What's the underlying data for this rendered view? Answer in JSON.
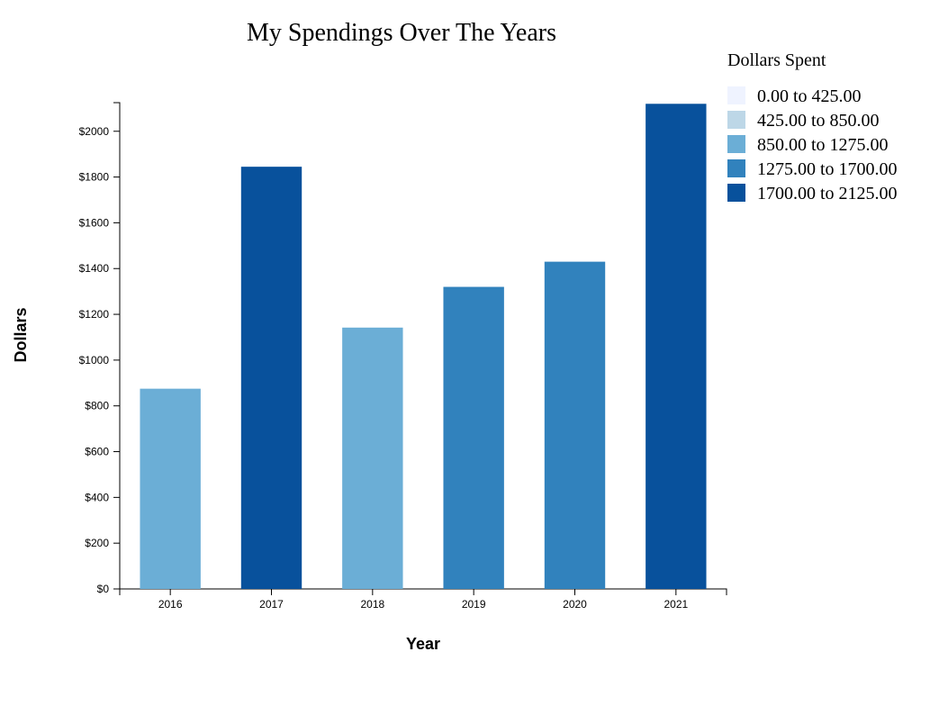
{
  "chart_data": {
    "type": "bar",
    "title": "My Spendings Over The Years",
    "xlabel": "Year",
    "ylabel": "Dollars",
    "categories": [
      "2016",
      "2017",
      "2018",
      "2019",
      "2020",
      "2021"
    ],
    "values": [
      875,
      1845,
      1142,
      1320,
      1430,
      2120
    ],
    "ylim": [
      0,
      2125
    ],
    "yticks": [
      0,
      200,
      400,
      600,
      800,
      1000,
      1200,
      1400,
      1600,
      1800,
      2000
    ],
    "ytick_labels": [
      "$0",
      "$200",
      "$400",
      "$600",
      "$800",
      "$1000",
      "$1200",
      "$1400",
      "$1600",
      "$1800",
      "$2000"
    ],
    "grid": false,
    "legend": {
      "title": "Dollars Spent",
      "placement": "right",
      "items": [
        {
          "label": "0.00 to 425.00",
          "min": 0,
          "max": 425,
          "color": "#eff3ff"
        },
        {
          "label": "425.00 to 850.00",
          "min": 425,
          "max": 850,
          "color": "#bdd7e7"
        },
        {
          "label": "850.00 to 1275.00",
          "min": 850,
          "max": 1275,
          "color": "#6baed6"
        },
        {
          "label": "1275.00 to 1700.00",
          "min": 1275,
          "max": 1700,
          "color": "#3182bd"
        },
        {
          "label": "1700.00 to 2125.00",
          "min": 1700,
          "max": 2125,
          "color": "#08519c"
        }
      ]
    }
  }
}
